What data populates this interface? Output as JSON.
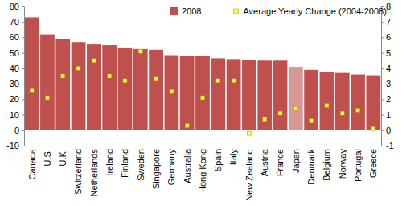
{
  "chart_data": {
    "type": "bar",
    "categories": [
      "Canada",
      "U.S.",
      "U.K.",
      "Switzerland",
      "Netherlands",
      "Ireland",
      "Finland",
      "Sweden",
      "Singapore",
      "Germany",
      "Australia",
      "Hong Kong",
      "Spain",
      "Italy",
      "New Zealand",
      "Austria",
      "France",
      "Japan",
      "Denmark",
      "Belgium",
      "Norway",
      "Portugal",
      "Greece"
    ],
    "series": [
      {
        "name": "2008",
        "type": "bar",
        "colors": [
          "#c0504d",
          "#c0504d",
          "#c0504d",
          "#c0504d",
          "#c0504d",
          "#c0504d",
          "#c0504d",
          "#c0504d",
          "#c0504d",
          "#c0504d",
          "#c0504d",
          "#c0504d",
          "#c0504d",
          "#c0504d",
          "#c0504d",
          "#c0504d",
          "#c0504d",
          "#d99694",
          "#c0504d",
          "#c0504d",
          "#c0504d",
          "#c0504d",
          "#c0504d"
        ],
        "values": [
          73,
          62,
          59,
          57,
          55.5,
          55,
          53,
          52.5,
          52,
          48.5,
          48,
          48,
          46.5,
          46,
          45.5,
          45,
          45,
          41,
          39,
          37.5,
          37,
          36,
          35.5
        ]
      },
      {
        "name": "Average Yearly Change (2004-2008)",
        "type": "scatter",
        "marker": "square",
        "color": "#ffff33",
        "axis": "y2",
        "values": [
          2.6,
          2.1,
          3.5,
          4.0,
          4.5,
          3.5,
          3.2,
          5.1,
          3.3,
          2.5,
          0.3,
          2.1,
          3.2,
          3.2,
          -0.2,
          0.7,
          1.1,
          1.4,
          0.6,
          1.6,
          1.1,
          1.3,
          0.1
        ]
      }
    ],
    "ylim": [
      -10,
      80
    ],
    "yticks": [
      -10,
      0,
      10,
      20,
      30,
      40,
      50,
      60,
      70,
      80
    ],
    "y2lim": [
      -1,
      8
    ],
    "y2ticks": [
      -1,
      0,
      1,
      2,
      3,
      4,
      5,
      6,
      7,
      8
    ],
    "legend": "top"
  }
}
